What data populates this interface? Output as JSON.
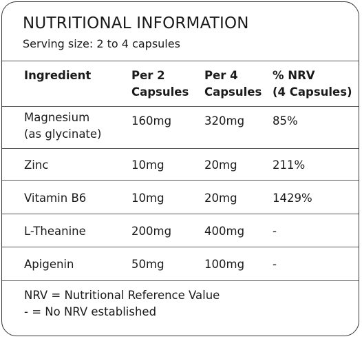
{
  "title": "NUTRITIONAL INFORMATION",
  "subtitle": "Serving size: 2 to 4 capsules",
  "table": {
    "headers": {
      "ingredient": "Ingredient",
      "per2_line1": "Per 2",
      "per2_line2": "Capsules",
      "per4_line1": "Per 4",
      "per4_line2": "Capsules",
      "nrv_line1": "% NRV",
      "nrv_line2": "(4 Capsules)"
    },
    "rows": [
      {
        "ingredient": "Magnesium",
        "ingredient_sub": "(as glycinate)",
        "per2": "160mg",
        "per4": "320mg",
        "nrv": "85%"
      },
      {
        "ingredient": "Zinc",
        "per2": "10mg",
        "per4": "20mg",
        "nrv": "211%"
      },
      {
        "ingredient": "Vitamin B6",
        "per2": "10mg",
        "per4": "20mg",
        "nrv": "1429%"
      },
      {
        "ingredient": "L-Theanine",
        "per2": "200mg",
        "per4": "400mg",
        "nrv": "-"
      },
      {
        "ingredient": "Apigenin",
        "per2": "50mg",
        "per4": "100mg",
        "nrv": "-"
      }
    ]
  },
  "footer": {
    "line1": "NRV = Nutritional Reference Value",
    "line2": "- = No NRV established"
  }
}
